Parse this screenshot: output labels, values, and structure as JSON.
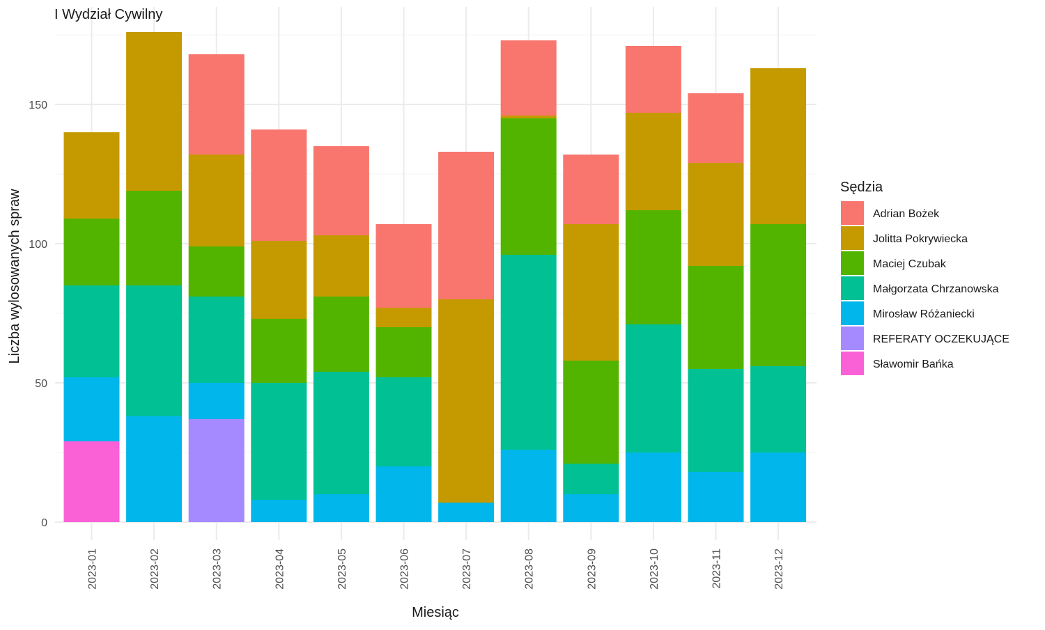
{
  "chart_data": {
    "type": "bar",
    "stacked": true,
    "title": "I Wydział Cywilny",
    "xlabel": "Miesiąc",
    "ylabel": "Liczba wylosowanych spraw",
    "ylim": [
      0,
      180
    ],
    "yticks": [
      0,
      50,
      100,
      150
    ],
    "grid": true,
    "legend_position": "right",
    "legend_title": "Sędzia",
    "categories": [
      "2023-01",
      "2023-02",
      "2023-03",
      "2023-04",
      "2023-05",
      "2023-06",
      "2023-07",
      "2023-08",
      "2023-09",
      "2023-10",
      "2023-11",
      "2023-12"
    ],
    "series": [
      {
        "name": "Adrian Bożek",
        "color": "#F8766D",
        "values": [
          0,
          0,
          36,
          40,
          32,
          30,
          53,
          27,
          25,
          24,
          25,
          0
        ]
      },
      {
        "name": "Jolitta Pokrywiecka",
        "color": "#C49A00",
        "values": [
          31,
          57,
          33,
          28,
          22,
          7,
          73,
          1,
          49,
          35,
          37,
          56
        ]
      },
      {
        "name": "Maciej Czubak",
        "color": "#53B400",
        "values": [
          24,
          34,
          18,
          23,
          27,
          18,
          0,
          49,
          37,
          41,
          37,
          51
        ]
      },
      {
        "name": "Małgorzata Chrzanowska",
        "color": "#00C094",
        "values": [
          33,
          47,
          31,
          42,
          44,
          32,
          0,
          70,
          11,
          46,
          37,
          31
        ]
      },
      {
        "name": "Mirosław Różaniecki",
        "color": "#00B6EB",
        "values": [
          23,
          38,
          13,
          8,
          10,
          20,
          7,
          26,
          10,
          25,
          18,
          25
        ]
      },
      {
        "name": "REFERATY OCZEKUJĄCE",
        "color": "#A58AFF",
        "values": [
          0,
          0,
          37,
          0,
          0,
          0,
          0,
          0,
          0,
          0,
          0,
          0
        ]
      },
      {
        "name": "Sławomir Bańka",
        "color": "#FB61D7",
        "values": [
          29,
          0,
          0,
          0,
          0,
          0,
          0,
          0,
          0,
          0,
          0,
          0
        ]
      }
    ]
  }
}
